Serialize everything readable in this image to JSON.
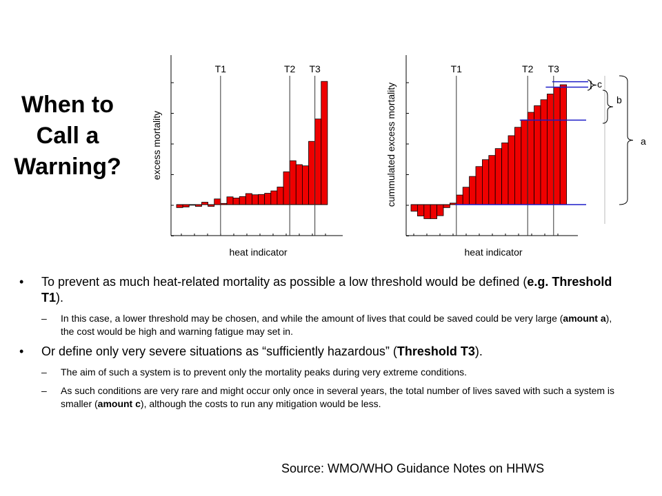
{
  "slide": {
    "title": "When to Call a Warning?",
    "source": "Source: WMO/WHO Guidance Notes on HHWS"
  },
  "bullets": [
    {
      "parts": [
        {
          "text": "To prevent as much heat-related mortality as possible a low threshold would be defined ("
        },
        {
          "text": "e.g. Threshold T1",
          "bold": true
        },
        {
          "text": ")."
        }
      ],
      "sub": [
        [
          {
            "text": "In this case, a lower threshold may be chosen, and while the amount of lives that could be saved could be very large ("
          },
          {
            "text": "amount a",
            "bold": true
          },
          {
            "text": "), the cost would be high and warning fatigue may set in."
          }
        ]
      ]
    },
    {
      "parts": [
        {
          "text": "Or define only very severe situations as “sufficiently hazardous” ("
        },
        {
          "text": "Threshold T3",
          "bold": true
        },
        {
          "text": ")."
        }
      ],
      "sub": [
        [
          {
            "text": "The aim of such a system is to prevent only the mortality peaks during very extreme conditions."
          }
        ],
        [
          {
            "text": "As such conditions are very rare and might occur only once in several years, the total number of lives saved with such a system is smaller ("
          },
          {
            "text": "amount c",
            "bold": true
          },
          {
            "text": "), although the costs to run any mitigation would be less."
          }
        ]
      ]
    }
  ],
  "chart_data": [
    {
      "type": "bar",
      "title": "",
      "xlabel": "heat indicator",
      "ylabel": "excess mortality",
      "bar_color": "#ee0000",
      "threshold_labels": [
        "T1",
        "T2",
        "T3"
      ],
      "threshold_after_bar": [
        7,
        18,
        22
      ],
      "values": [
        -0.1,
        -0.08,
        -0.02,
        -0.06,
        0.08,
        -0.06,
        0.19,
        0.04,
        0.26,
        0.22,
        0.27,
        0.37,
        0.33,
        0.34,
        0.38,
        0.46,
        0.59,
        1.1,
        1.47,
        1.34,
        1.3,
        2.12,
        2.87,
        4.13
      ]
    },
    {
      "type": "bar",
      "title": "",
      "xlabel": "heat indicator",
      "ylabel": "cummulated excess mortality",
      "bar_color": "#ee0000",
      "threshold_labels": [
        "T1",
        "T2",
        "T3"
      ],
      "threshold_after_bar": [
        7,
        18,
        22
      ],
      "reference_lines": [
        0,
        2.82,
        3.92,
        4.1
      ],
      "brackets": [
        "c",
        "b",
        "a"
      ],
      "values": [
        -0.22,
        -0.38,
        -0.47,
        -0.47,
        -0.37,
        -0.1,
        0.05,
        0.32,
        0.58,
        0.94,
        1.27,
        1.5,
        1.64,
        1.87,
        2.06,
        2.3,
        2.58,
        2.83,
        3.08,
        3.3,
        3.5,
        3.69,
        3.92,
        4.0
      ]
    }
  ]
}
